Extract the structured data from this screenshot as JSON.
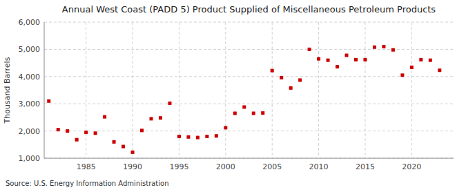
{
  "chart_data": {
    "type": "scatter",
    "title": "Annual West Coast (PADD 5) Product Supplied of Miscellaneous Petroleum Products",
    "y_label": "Thousand Barrels",
    "annotations": [
      "Source: U.S. Energy Information Administration"
    ],
    "x": [
      1981,
      1982,
      1983,
      1984,
      1985,
      1986,
      1987,
      1988,
      1989,
      1990,
      1991,
      1992,
      1993,
      1994,
      1995,
      1996,
      1997,
      1998,
      1999,
      2000,
      2001,
      2002,
      2003,
      2004,
      2005,
      2006,
      2007,
      2008,
      2009,
      2010,
      2011,
      2012,
      2013,
      2014,
      2015,
      2016,
      2017,
      2018,
      2019,
      2020,
      2021,
      2022,
      2023
    ],
    "values": [
      3100,
      2050,
      2000,
      1680,
      1950,
      1920,
      2520,
      1600,
      1430,
      1220,
      2020,
      2450,
      2480,
      3020,
      1800,
      1780,
      1760,
      1800,
      1820,
      2120,
      2650,
      2880,
      2650,
      2660,
      4220,
      3960,
      3580,
      3870,
      5000,
      4650,
      4600,
      4360,
      4780,
      4620,
      4620,
      5080,
      5100,
      4980,
      4050,
      4340,
      4620,
      4600,
      4230
    ],
    "color": "#cc0000",
    "marker": "square",
    "xlim": [
      1980.5,
      2024.5
    ],
    "xticks": [
      1985,
      1990,
      1995,
      2000,
      2005,
      2010,
      2015,
      2020
    ],
    "ylim": [
      1000,
      6000
    ],
    "yticks": [
      {
        "value": 1000,
        "label": "1,000"
      },
      {
        "value": 2000,
        "label": "2,000"
      },
      {
        "value": 3000,
        "label": "3,000"
      },
      {
        "value": 4000,
        "label": "4,000"
      },
      {
        "value": 5000,
        "label": "5,000"
      },
      {
        "value": 6000,
        "label": "6,000"
      }
    ],
    "grid": true
  }
}
